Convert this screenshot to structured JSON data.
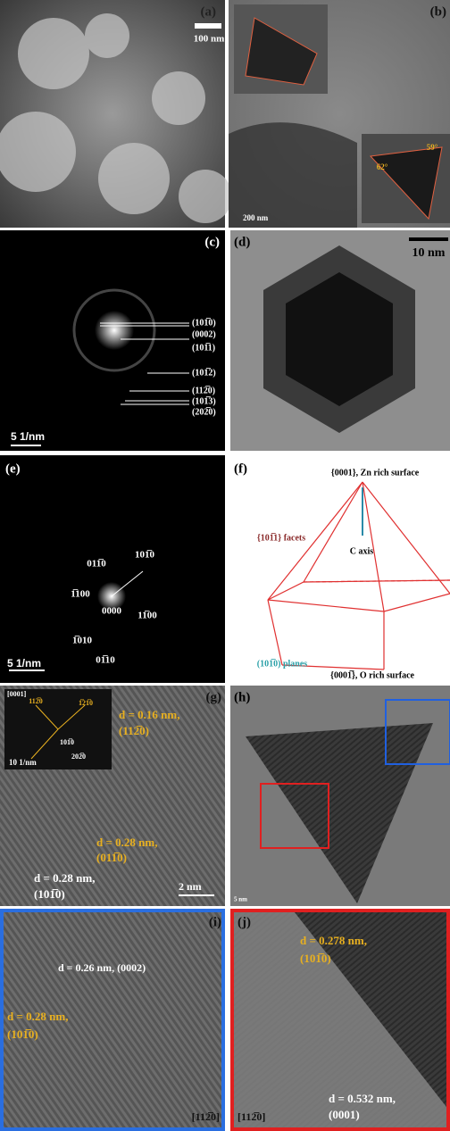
{
  "panels": [
    {
      "label": "(a)",
      "texts": [
        "100 nm"
      ]
    },
    {
      "label": "(b)",
      "texts": [
        "200 nm",
        "62°",
        "59°"
      ]
    },
    {
      "label": "(c)",
      "texts": [
        "(101̅0)",
        "(0002)",
        "(101̅1)",
        "(101̅2)",
        "(112̅0)",
        "(101̅3)",
        "(202̅0)",
        "5 1/nm"
      ]
    },
    {
      "label": "(d)",
      "texts": [
        "10 nm"
      ]
    },
    {
      "label": "(e)",
      "texts": [
        "011̅0",
        "101̅0",
        "1̅100",
        "0000",
        "11̅00",
        "1̅010",
        "01̅10",
        "5 1/nm"
      ]
    },
    {
      "label": "(f)",
      "texts": [
        "{0001}, Zn rich surface",
        "{101̅1} facets",
        "C axis",
        "(101̅0) planes",
        "{0001̅}, O rich surface"
      ]
    },
    {
      "label": "(g)",
      "texts": [
        "[0001]",
        "112̅0",
        "1̅21̅0",
        "101̅0",
        "202̅0",
        "10 1/nm",
        "d = 0.16 nm,",
        "(112̅0)",
        "d = 0.28 nm,",
        "(011̅0)",
        "d = 0.28 nm,",
        "(101̅0)",
        "2 nm"
      ]
    },
    {
      "label": "(h)",
      "texts": [
        "5 nm"
      ]
    },
    {
      "label": "(i)",
      "texts": [
        "d = 0.26 nm, (0002)",
        "d = 0.28 nm,",
        "(101̅0)",
        "[112̅0]"
      ]
    },
    {
      "label": "(j)",
      "texts": [
        "d = 0.278 nm,",
        "(101̅0)",
        "d = 0.532 nm,",
        "(0001)",
        "[112̅0]"
      ]
    }
  ]
}
